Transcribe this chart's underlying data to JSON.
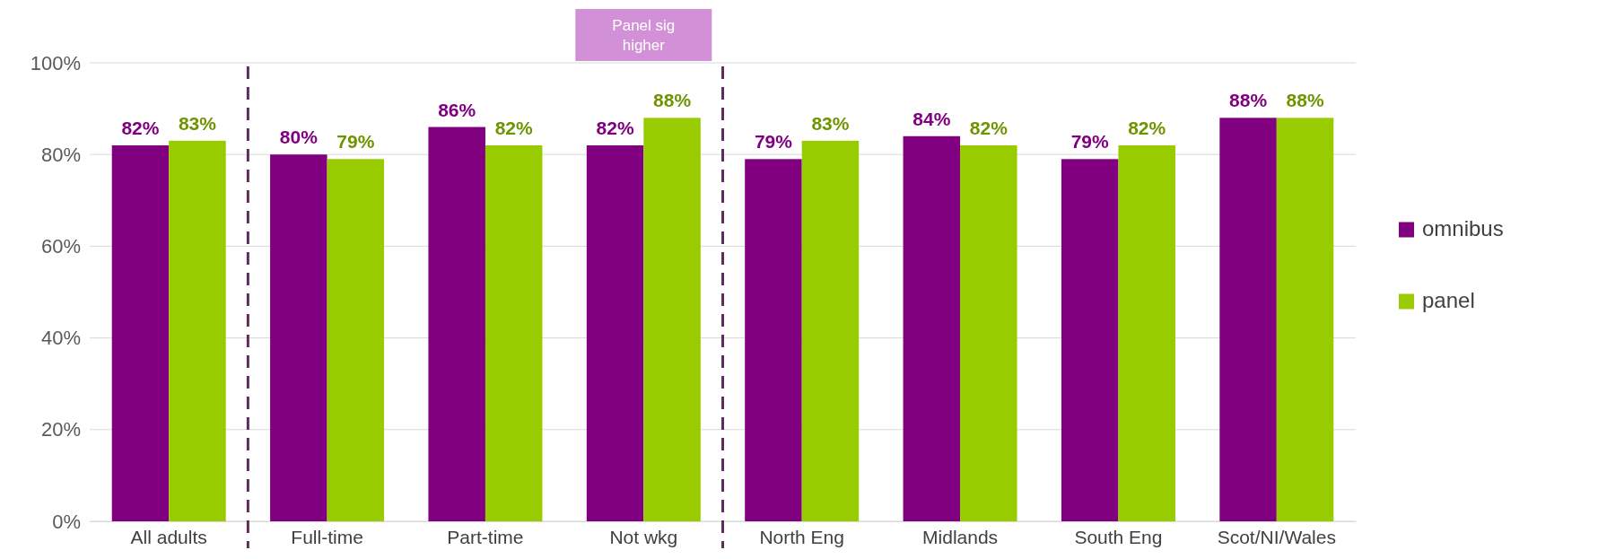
{
  "chart_data": {
    "type": "bar",
    "categories": [
      "All adults",
      "Full-time",
      "Part-time",
      "Not wkg",
      "North Eng",
      "Midlands",
      "South Eng",
      "Scot/NI/Wales"
    ],
    "series": [
      {
        "name": "omnibus",
        "color": "#800080",
        "values": [
          82,
          80,
          86,
          82,
          79,
          84,
          79,
          88
        ],
        "value_labels": [
          "82%",
          "80%",
          "86%",
          "82%",
          "79%",
          "84%",
          "79%",
          "88%"
        ]
      },
      {
        "name": "panel",
        "color": "#99cc00",
        "values": [
          83,
          79,
          82,
          88,
          83,
          82,
          82,
          88
        ],
        "value_labels": [
          "83%",
          "79%",
          "82%",
          "88%",
          "83%",
          "82%",
          "82%",
          "88%"
        ]
      }
    ],
    "ylim": [
      0,
      100
    ],
    "yticks": [
      {
        "value": 0,
        "label": "0%"
      },
      {
        "value": 20,
        "label": "20%"
      },
      {
        "value": 40,
        "label": "40%"
      },
      {
        "value": 60,
        "label": "60%"
      },
      {
        "value": 80,
        "label": "80%"
      },
      {
        "value": 100,
        "label": "100%"
      }
    ],
    "grid": "y",
    "legend": "right",
    "annotations": [
      "Panel sig higher"
    ]
  }
}
